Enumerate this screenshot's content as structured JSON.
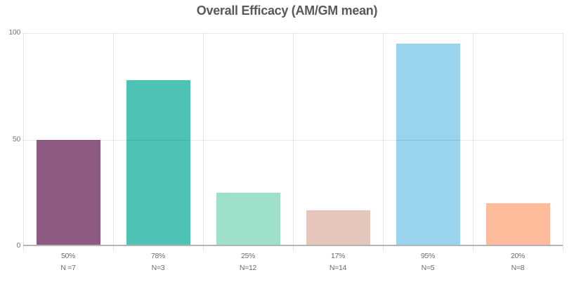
{
  "chart_data": {
    "type": "bar",
    "title": "Overall Efficacy (AM/GM mean)",
    "title_color": "#58595b",
    "ylim": [
      0,
      100
    ],
    "yticks": [
      0,
      50,
      100
    ],
    "grid": "horizontal gridlines at 50 and 100 plus vertical category separators",
    "legend": "none",
    "categories": [
      "50% N =7",
      "78% N=3",
      "25% N=12",
      "17% N=14",
      "95% N=5",
      "20% N=8"
    ],
    "values": [
      50,
      78,
      25,
      17,
      95,
      20
    ],
    "bars": [
      {
        "value": 50,
        "value_label": "50%",
        "n_label": "N =7",
        "color": "#8e5a82"
      },
      {
        "value": 78,
        "value_label": "78%",
        "n_label": "N=3",
        "color": "#4ec3b5"
      },
      {
        "value": 25,
        "value_label": "25%",
        "n_label": "N=12",
        "color": "#9ee0ca"
      },
      {
        "value": 17,
        "value_label": "17%",
        "n_label": "N=14",
        "color": "#e4c6bd"
      },
      {
        "value": 95,
        "value_label": "95%",
        "n_label": "N=5",
        "color": "#9ad3ee"
      },
      {
        "value": 20,
        "value_label": "20%",
        "n_label": "N=8",
        "color": "#ffbc9d"
      }
    ]
  }
}
